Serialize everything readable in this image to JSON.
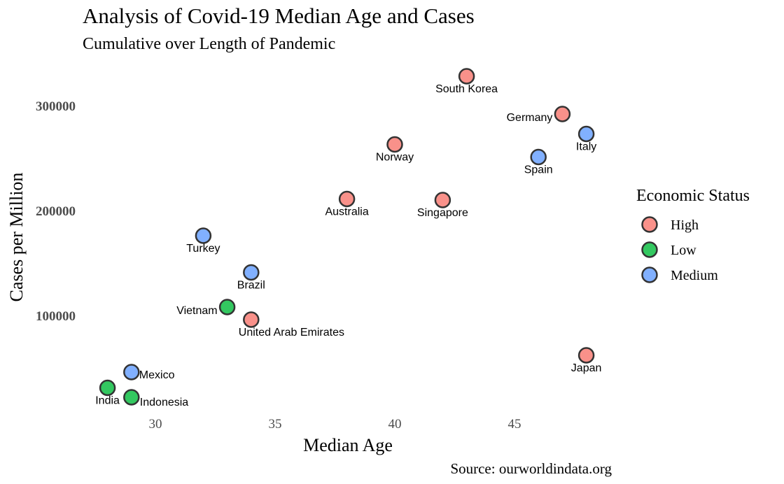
{
  "chart_data": {
    "type": "scatter",
    "title": "Analysis of Covid-19 Median Age and Cases",
    "subtitle": "Cumulative over Length of Pandemic",
    "xlabel": "Median Age",
    "ylabel": "Cases per Million",
    "xlim": [
      27,
      50
    ],
    "ylim": [
      15000,
      335000
    ],
    "xticks": [
      30,
      35,
      40,
      45
    ],
    "yticks": [
      100000,
      200000,
      300000
    ],
    "grid": false,
    "legend": {
      "title": "Economic Status",
      "placement": "right",
      "entries": [
        {
          "name": "High",
          "color": "#f8766d"
        },
        {
          "name": "Low",
          "color": "#00ba38"
        },
        {
          "name": "Medium",
          "color": "#619cff"
        }
      ]
    },
    "caption": "Source: ourworldindata.org",
    "points": [
      {
        "label": "South Korea",
        "x": 43,
        "y": 328000,
        "group": "High",
        "pos": "below"
      },
      {
        "label": "Germany",
        "x": 47,
        "y": 292000,
        "group": "High",
        "pos": "left"
      },
      {
        "label": "Italy",
        "x": 48,
        "y": 273000,
        "group": "Medium",
        "pos": "below"
      },
      {
        "label": "Norway",
        "x": 40,
        "y": 263000,
        "group": "High",
        "pos": "below"
      },
      {
        "label": "Spain",
        "x": 46,
        "y": 251000,
        "group": "Medium",
        "pos": "below"
      },
      {
        "label": "Australia",
        "x": 38,
        "y": 211000,
        "group": "High",
        "pos": "below"
      },
      {
        "label": "Singapore",
        "x": 42,
        "y": 210000,
        "group": "High",
        "pos": "below"
      },
      {
        "label": "Turkey",
        "x": 32,
        "y": 176000,
        "group": "Medium",
        "pos": "below"
      },
      {
        "label": "Brazil",
        "x": 34,
        "y": 141000,
        "group": "Medium",
        "pos": "below"
      },
      {
        "label": "Vietnam",
        "x": 33,
        "y": 108000,
        "group": "Low",
        "pos": "left"
      },
      {
        "label": "United Arab Emirates",
        "x": 34,
        "y": 96000,
        "group": "High",
        "pos": "belowright"
      },
      {
        "label": "Japan",
        "x": 48,
        "y": 62000,
        "group": "High",
        "pos": "below"
      },
      {
        "label": "Mexico",
        "x": 29,
        "y": 46000,
        "group": "Medium",
        "pos": "right"
      },
      {
        "label": "India",
        "x": 28,
        "y": 31000,
        "group": "Low",
        "pos": "below"
      },
      {
        "label": "Indonesia",
        "x": 29,
        "y": 22000,
        "group": "Low",
        "pos": "belowright"
      }
    ]
  }
}
